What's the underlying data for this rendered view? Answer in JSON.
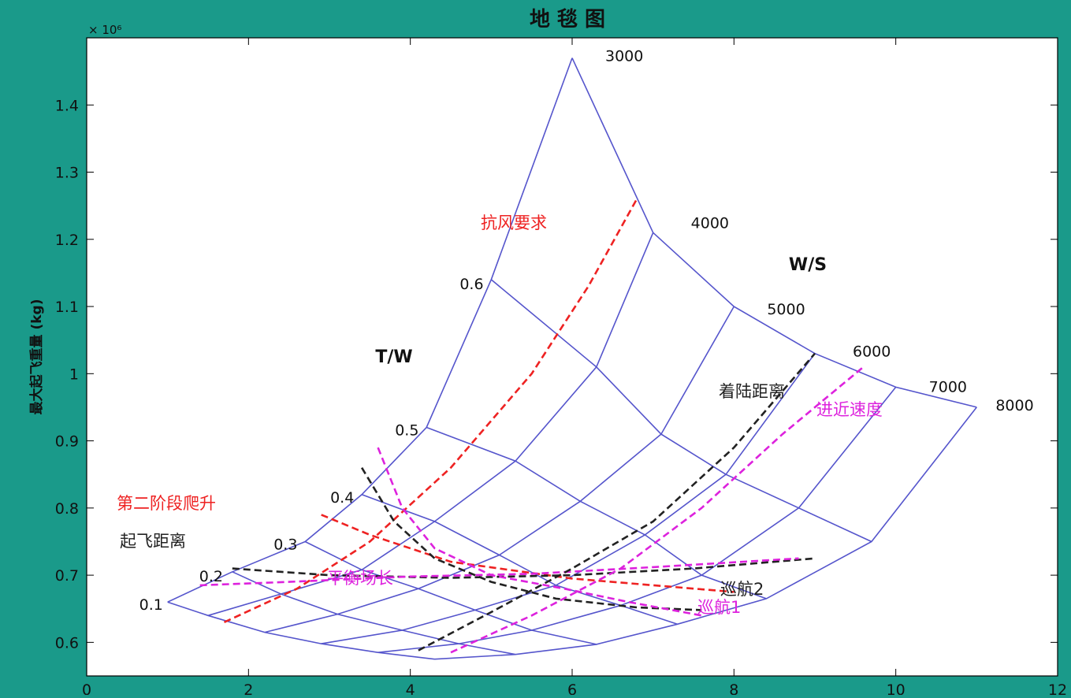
{
  "chart_data": {
    "type": "line",
    "title": "地 毯 图",
    "ylabel": "最大起飞重量 (kg)",
    "xlabel": "",
    "y_multiplier": "× 10⁶",
    "xlim": [
      0,
      12
    ],
    "ylim": [
      0.55,
      1.5
    ],
    "x_ticks": [
      "0",
      "2",
      "4",
      "6",
      "8",
      "10",
      "12"
    ],
    "y_ticks": [
      "0.6",
      "0.7",
      "0.8",
      "0.9",
      "1",
      "1.1",
      "1.2",
      "1.3",
      "1.4"
    ],
    "grid": false,
    "tw_axis_title": "T/W",
    "ws_axis_title": "W/S",
    "tw_labels": [
      "0.1",
      "0.2",
      "0.3",
      "0.4",
      "0.5",
      "0.6"
    ],
    "ws_labels": [
      "3000",
      "4000",
      "5000",
      "6000",
      "7000",
      "8000"
    ],
    "carpet_color": "#5555cc",
    "carpet_vertices": [
      [
        [
          1.0,
          0.66
        ],
        [
          1.8,
          0.705
        ],
        [
          2.7,
          0.75
        ],
        [
          3.4,
          0.82
        ],
        [
          4.2,
          0.92
        ],
        [
          5.0,
          1.14
        ],
        [
          6.0,
          1.47
        ]
      ],
      [
        [
          1.5,
          0.64
        ],
        [
          2.4,
          0.672
        ],
        [
          3.4,
          0.708
        ],
        [
          4.3,
          0.78
        ],
        [
          5.3,
          0.87
        ],
        [
          6.3,
          1.01
        ],
        [
          7.0,
          1.21
        ]
      ],
      [
        [
          2.2,
          0.615
        ],
        [
          3.1,
          0.642
        ],
        [
          4.1,
          0.68
        ],
        [
          5.1,
          0.73
        ],
        [
          6.1,
          0.81
        ],
        [
          7.1,
          0.91
        ],
        [
          8.0,
          1.1
        ]
      ],
      [
        [
          2.9,
          0.598
        ],
        [
          3.9,
          0.618
        ],
        [
          4.8,
          0.648
        ],
        [
          5.8,
          0.685
        ],
        [
          6.9,
          0.76
        ],
        [
          7.9,
          0.85
        ],
        [
          9.0,
          1.03
        ]
      ],
      [
        [
          3.6,
          0.585
        ],
        [
          4.6,
          0.598
        ],
        [
          5.5,
          0.618
        ],
        [
          6.6,
          0.655
        ],
        [
          7.6,
          0.7
        ],
        [
          8.8,
          0.8
        ],
        [
          10.0,
          0.98
        ]
      ],
      [
        [
          4.3,
          0.575
        ],
        [
          5.3,
          0.582
        ],
        [
          6.3,
          0.597
        ],
        [
          7.3,
          0.627
        ],
        [
          8.4,
          0.665
        ],
        [
          9.7,
          0.75
        ],
        [
          11.0,
          0.95
        ]
      ]
    ],
    "constraints": [
      {
        "name": "抗风要求",
        "color": "#ee2222",
        "points": [
          [
            1.7,
            0.63
          ],
          [
            2.6,
            0.68
          ],
          [
            3.5,
            0.75
          ],
          [
            4.5,
            0.86
          ],
          [
            5.5,
            1.0
          ],
          [
            6.2,
            1.13
          ],
          [
            6.8,
            1.26
          ]
        ]
      },
      {
        "name": "第二阶段爬升",
        "color": "#ee2222",
        "points": [
          [
            2.9,
            0.79
          ],
          [
            3.5,
            0.76
          ],
          [
            4.5,
            0.72
          ],
          [
            6.0,
            0.695
          ],
          [
            7.0,
            0.685
          ],
          [
            8.0,
            0.675
          ]
        ]
      },
      {
        "name": "起飞距离",
        "color": "#222222",
        "points": [
          [
            1.8,
            0.71
          ],
          [
            3.0,
            0.7
          ],
          [
            4.5,
            0.696
          ],
          [
            6.0,
            0.7
          ],
          [
            7.5,
            0.71
          ],
          [
            9.0,
            0.725
          ]
        ]
      },
      {
        "name": "平衡场长",
        "color": "#dd22dd",
        "points": [
          [
            1.4,
            0.685
          ],
          [
            2.5,
            0.69
          ],
          [
            4.0,
            0.698
          ],
          [
            5.5,
            0.702
          ],
          [
            7.0,
            0.712
          ],
          [
            8.8,
            0.725
          ]
        ]
      },
      {
        "name": "巡航2",
        "color": "#222222",
        "points": [
          [
            3.4,
            0.86
          ],
          [
            3.8,
            0.78
          ],
          [
            4.3,
            0.725
          ],
          [
            5.0,
            0.69
          ],
          [
            5.8,
            0.665
          ],
          [
            6.8,
            0.652
          ],
          [
            7.6,
            0.648
          ]
        ]
      },
      {
        "name": "巡航1",
        "color": "#dd22dd",
        "points": [
          [
            3.6,
            0.89
          ],
          [
            3.9,
            0.8
          ],
          [
            4.3,
            0.74
          ],
          [
            5.0,
            0.7
          ],
          [
            5.9,
            0.68
          ],
          [
            6.7,
            0.66
          ],
          [
            7.6,
            0.64
          ]
        ]
      },
      {
        "name": "着陆距离",
        "color": "#222222",
        "points": [
          [
            4.1,
            0.588
          ],
          [
            5.0,
            0.645
          ],
          [
            6.0,
            0.71
          ],
          [
            7.0,
            0.78
          ],
          [
            8.0,
            0.89
          ],
          [
            9.0,
            1.03
          ]
        ]
      },
      {
        "name": "进近速度",
        "color": "#dd22dd",
        "points": [
          [
            4.5,
            0.585
          ],
          [
            5.5,
            0.64
          ],
          [
            6.6,
            0.71
          ],
          [
            7.6,
            0.8
          ],
          [
            8.6,
            0.91
          ],
          [
            9.6,
            1.01
          ]
        ]
      }
    ]
  }
}
